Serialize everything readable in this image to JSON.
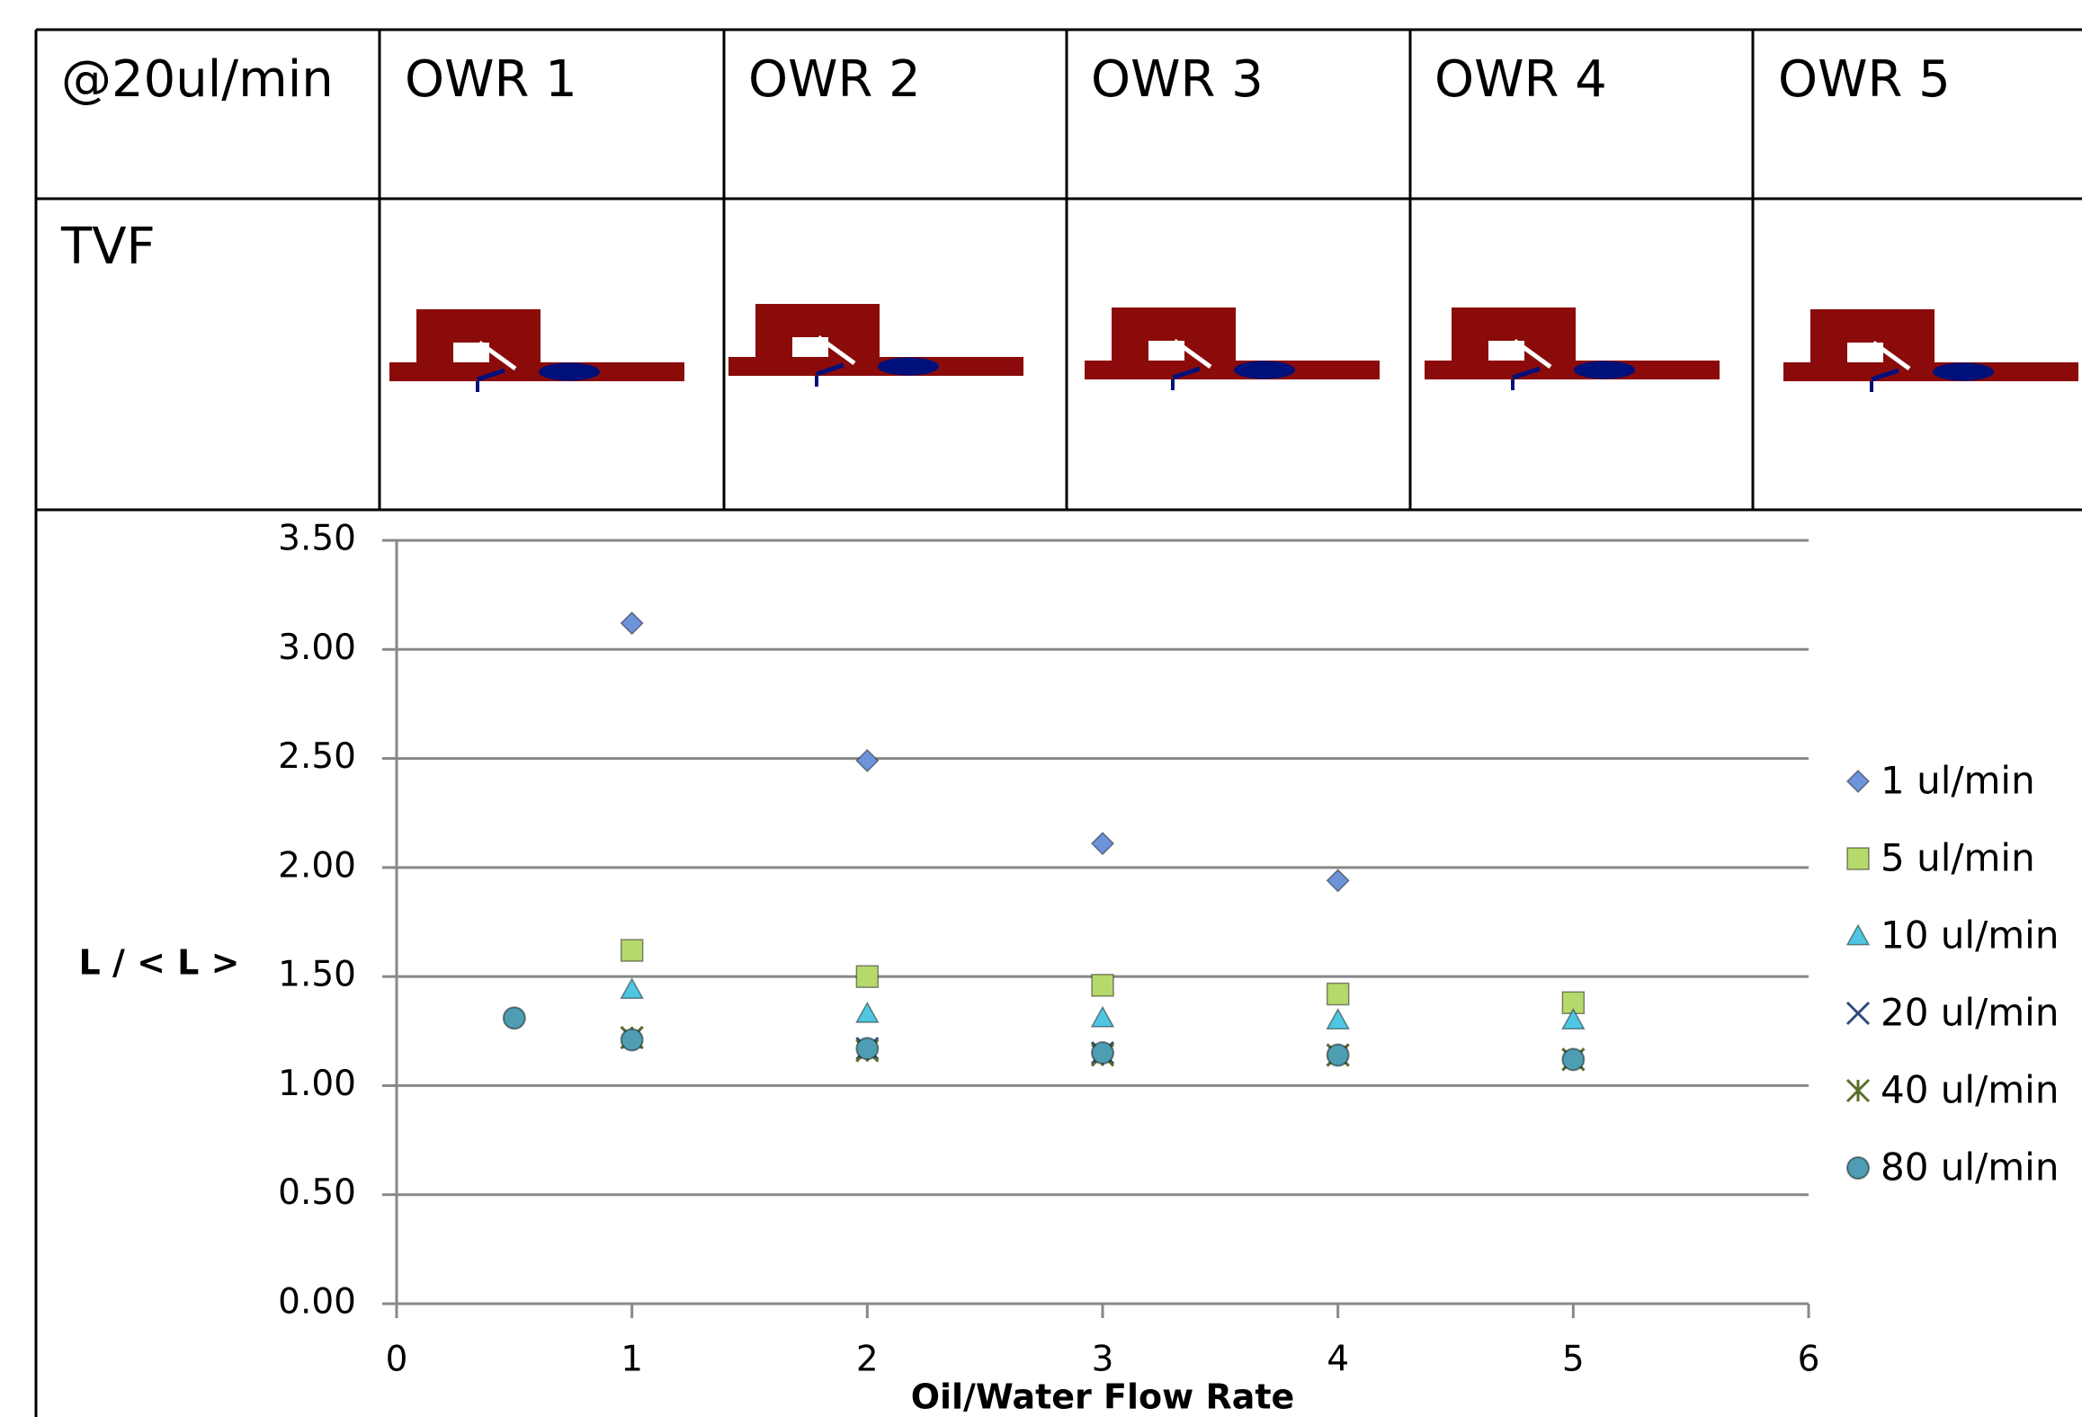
{
  "table": {
    "header": [
      "@20ul/min",
      "OWR 1",
      "OWR 2",
      "OWR 3",
      "OWR 4",
      "OWR 5"
    ],
    "rows": [
      [
        "TVF"
      ]
    ]
  },
  "chart_data": {
    "type": "scatter",
    "ylabel": "L / < L >",
    "xlabel": "Oil/Water Flow Rate",
    "xlim": [
      0,
      6
    ],
    "xticks": [
      0,
      1,
      2,
      3,
      4,
      5,
      6
    ],
    "ylim": [
      0,
      3.5
    ],
    "yticks": [
      {
        "value": 0,
        "label": "0.00"
      },
      {
        "value": 0.5,
        "label": "0.50"
      },
      {
        "value": 1,
        "label": "1.00"
      },
      {
        "value": 1.5,
        "label": "1.50"
      },
      {
        "value": 2,
        "label": "2.00"
      },
      {
        "value": 2.5,
        "label": "2.50"
      },
      {
        "value": 3,
        "label": "3.00"
      },
      {
        "value": 3.5,
        "label": "3.50"
      }
    ],
    "grid": true,
    "legend": "right",
    "series": [
      {
        "name": "1 ul/min",
        "color": "#6d93da",
        "marker": "diamond",
        "x": [
          1,
          2,
          3,
          4
        ],
        "values": [
          3.12,
          2.49,
          2.11,
          1.94
        ]
      },
      {
        "name": "5 ul/min",
        "color": "#b6d96c",
        "marker": "square",
        "x": [
          1,
          2,
          3,
          4,
          5
        ],
        "values": [
          1.62,
          1.5,
          1.46,
          1.42,
          1.38
        ]
      },
      {
        "name": "10 ul/min",
        "color": "#4fc6e2",
        "marker": "triangle",
        "x": [
          1,
          2,
          3,
          4,
          5
        ],
        "values": [
          1.44,
          1.33,
          1.31,
          1.3,
          1.3
        ]
      },
      {
        "name": "20 ul/min",
        "color": "#2e4a7c",
        "marker": "x",
        "x": [
          1,
          2,
          3,
          4,
          5
        ],
        "values": [
          1.22,
          1.17,
          1.15,
          1.14,
          1.12
        ]
      },
      {
        "name": "40 ul/min",
        "color": "#5c6e2a",
        "marker": "star",
        "x": [
          1,
          2,
          3,
          4,
          5
        ],
        "values": [
          1.22,
          1.16,
          1.14,
          1.14,
          1.12
        ]
      },
      {
        "name": "80 ul/min",
        "color": "#4e9db2",
        "marker": "circle",
        "x": [
          0.5,
          1,
          2,
          3,
          4,
          5
        ],
        "values": [
          1.31,
          1.21,
          1.17,
          1.15,
          1.14,
          1.12
        ]
      }
    ]
  }
}
